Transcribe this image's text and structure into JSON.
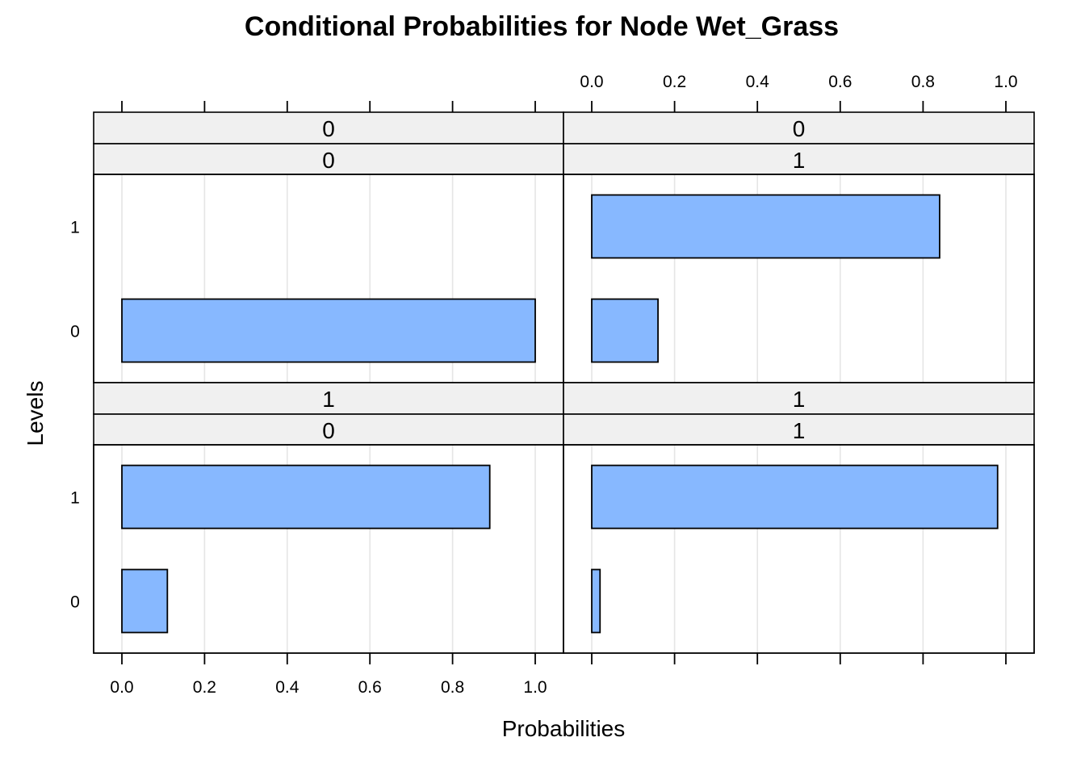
{
  "chart_data": {
    "type": "bar",
    "orientation": "horizontal",
    "title": "Conditional Probabilities for Node Wet_Grass",
    "xlabel": "Probabilities",
    "ylabel": "Levels",
    "xlim": [
      0,
      1
    ],
    "x_ticks": [
      "0.0",
      "0.2",
      "0.4",
      "0.6",
      "0.8",
      "1.0"
    ],
    "levels": [
      "0",
      "1"
    ],
    "bar_color": "#87b8ff",
    "strip_color": "#f0f0f0",
    "grid": true,
    "panels": [
      {
        "id": "p00",
        "strip_top": "0",
        "strip_bottom": "0",
        "values": {
          "0": 1.0,
          "1": 0.0
        }
      },
      {
        "id": "p01",
        "strip_top": "0",
        "strip_bottom": "1",
        "values": {
          "0": 0.16,
          "1": 0.84
        }
      },
      {
        "id": "p10",
        "strip_top": "1",
        "strip_bottom": "0",
        "values": {
          "0": 0.11,
          "1": 0.89
        }
      },
      {
        "id": "p11",
        "strip_top": "1",
        "strip_bottom": "1",
        "values": {
          "0": 0.02,
          "1": 0.98
        }
      }
    ]
  }
}
